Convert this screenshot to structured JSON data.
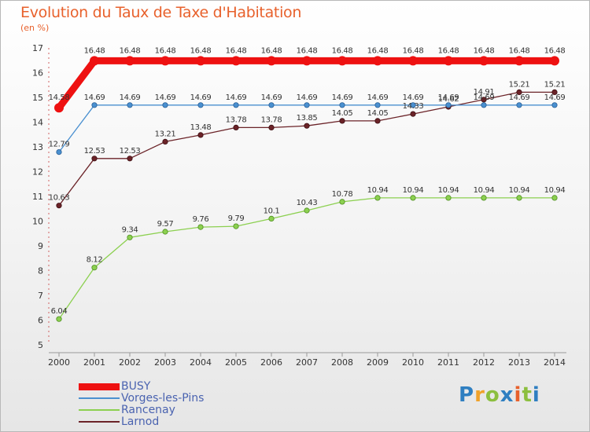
{
  "chart_data": {
    "type": "line",
    "title": "Evolution du Taux de Taxe d'Habitation",
    "subtitle": "(en %)",
    "xlabel": "",
    "ylabel": "",
    "x": [
      "2000",
      "2001",
      "2002",
      "2003",
      "2004",
      "2005",
      "2006",
      "2007",
      "2008",
      "2009",
      "2010",
      "2011",
      "2012",
      "2013",
      "2014"
    ],
    "ylim": [
      5,
      17
    ],
    "yticks": [
      "5",
      "6",
      "7",
      "8",
      "9",
      "10",
      "11",
      "12",
      "13",
      "14",
      "15",
      "16",
      "17"
    ],
    "grid": false,
    "series": [
      {
        "name": "BUSY",
        "color": "#ee1111",
        "values": [
          14.58,
          16.48,
          16.48,
          16.48,
          16.48,
          16.48,
          16.48,
          16.48,
          16.48,
          16.48,
          16.48,
          16.48,
          16.48,
          16.48,
          16.48
        ],
        "labels": [
          "14.58",
          "16.48",
          "16.48",
          "16.48",
          "16.48",
          "16.48",
          "16.48",
          "16.48",
          "16.48",
          "16.48",
          "16.48",
          "16.48",
          "16.48",
          "16.48",
          "16.48"
        ]
      },
      {
        "name": "Vorges-les-Pins",
        "color": "#4a90d0",
        "values": [
          12.79,
          14.69,
          14.69,
          14.69,
          14.69,
          14.69,
          14.69,
          14.69,
          14.69,
          14.69,
          14.69,
          14.69,
          14.69,
          14.69,
          14.69
        ],
        "labels": [
          "12.79",
          "14.69",
          "14.69",
          "14.69",
          "14.69",
          "14.69",
          "14.69",
          "14.69",
          "14.69",
          "14.69",
          "14.69",
          "14.69",
          "14.69",
          "14.69",
          "14.69"
        ]
      },
      {
        "name": "Rancenay",
        "color": "#8cd050",
        "values": [
          6.04,
          8.12,
          9.34,
          9.57,
          9.76,
          9.79,
          10.1,
          10.43,
          10.78,
          10.94,
          10.94,
          10.94,
          10.94,
          10.94,
          10.94
        ],
        "labels": [
          "6.04",
          "8.12",
          "9.34",
          "9.57",
          "9.76",
          "9.79",
          "10.1",
          "10.43",
          "10.78",
          "10.94",
          "10.94",
          "10.94",
          "10.94",
          "10.94",
          "10.94"
        ]
      },
      {
        "name": "Larnod",
        "color": "#6b2328",
        "values": [
          10.63,
          12.53,
          12.53,
          13.21,
          13.48,
          13.78,
          13.78,
          13.85,
          14.05,
          14.05,
          14.33,
          14.62,
          14.91,
          15.21,
          15.21
        ],
        "labels": [
          "10.63",
          "12.53",
          "12.53",
          "13.21",
          "13.48",
          "13.78",
          "13.78",
          "13.85",
          "14.05",
          "14.05",
          "14.33",
          "14.62",
          "14.91",
          "15.21",
          "15.21"
        ]
      }
    ]
  },
  "logo": {
    "letters": [
      "P",
      "r",
      "o",
      "x",
      "i",
      "t",
      "i"
    ]
  }
}
